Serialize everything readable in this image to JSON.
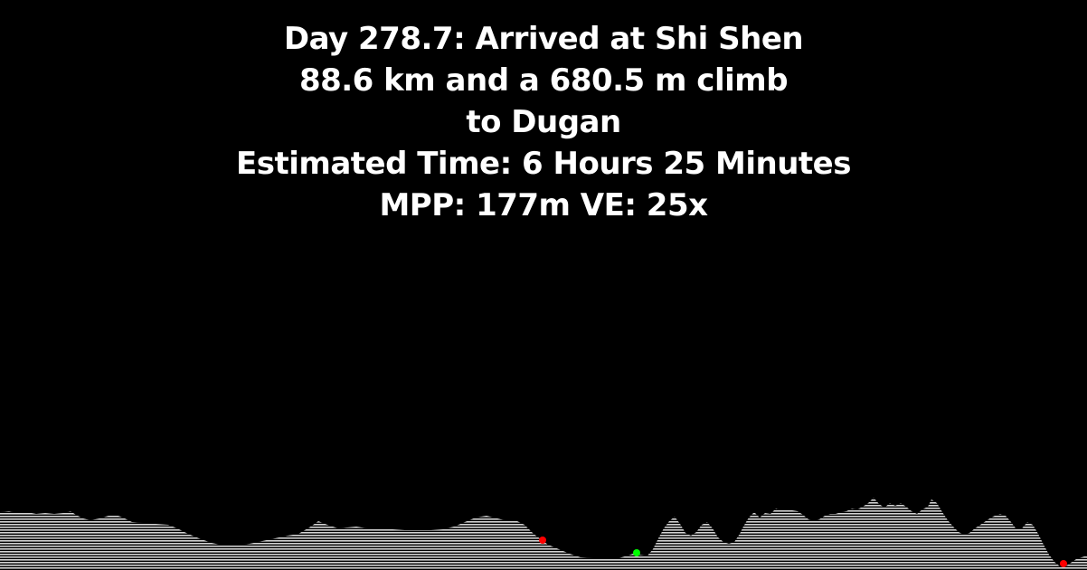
{
  "header": {
    "line1": "Day 278.7: Arrived at Shi Shen",
    "line2": "88.6 km and a 680.5 m climb",
    "line3": "to Dugan",
    "line4": "Estimated Time: 6 Hours 25 Minutes",
    "line5": "MPP: 177m VE: 25x"
  },
  "colors": {
    "background": "#000000",
    "text": "#ffffff",
    "terrain": "#cfcfcf",
    "marker_red": "#ff0000",
    "marker_green": "#00ff00"
  },
  "markers": [
    {
      "kind": "red-dot"
    },
    {
      "kind": "green-dot"
    },
    {
      "kind": "red-dot"
    }
  ]
}
